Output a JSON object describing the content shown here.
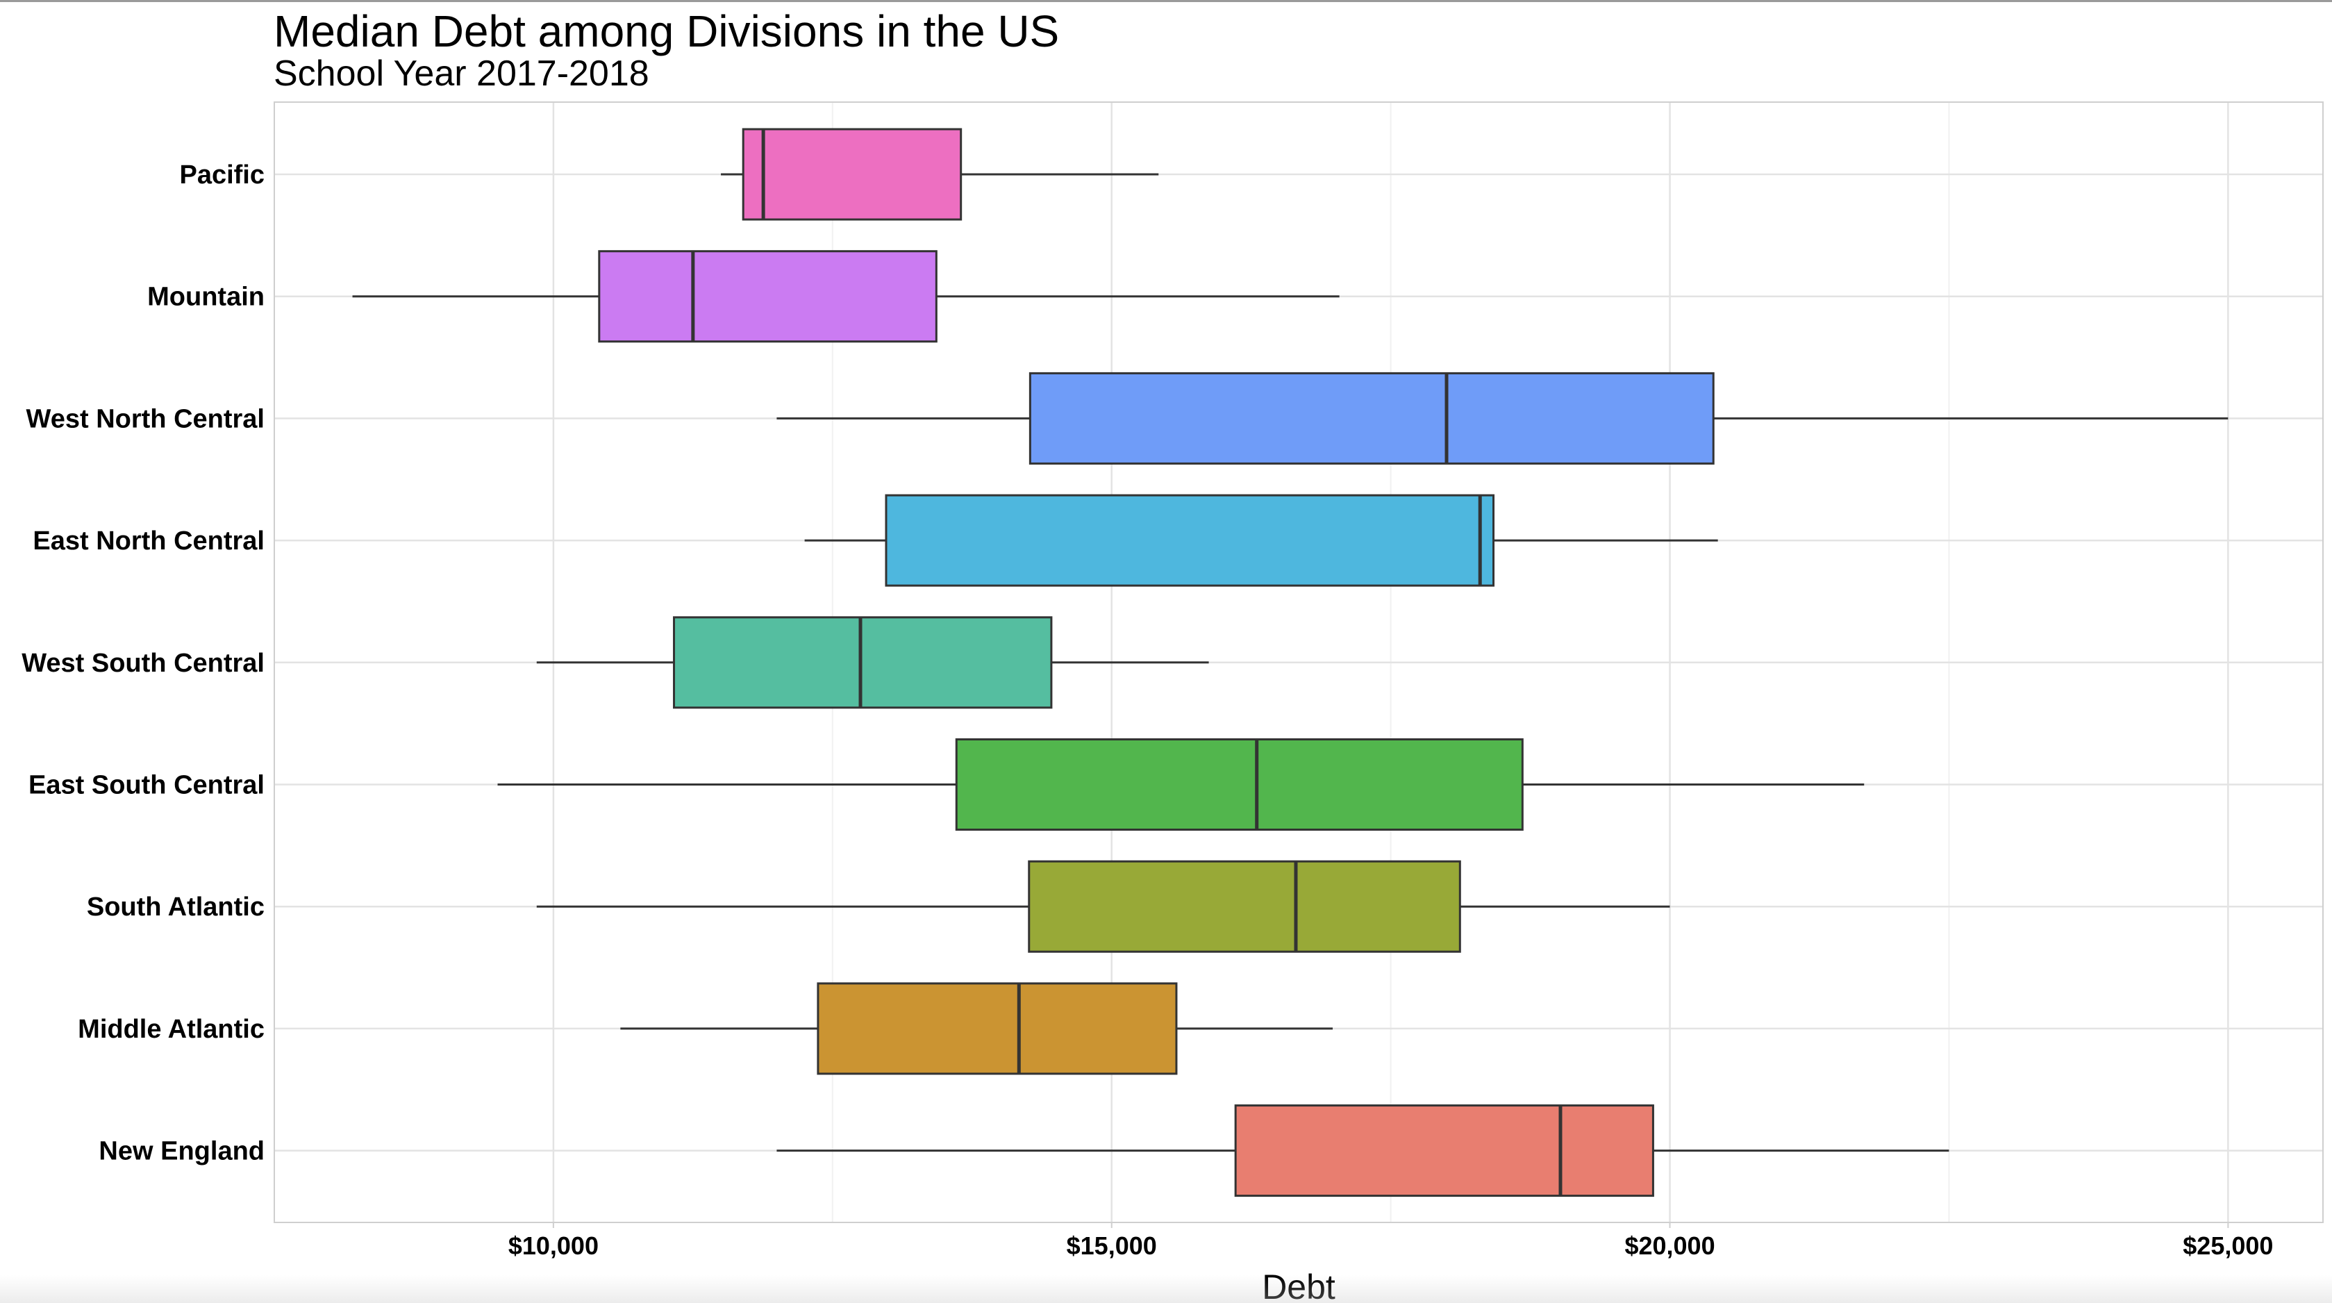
{
  "chart_data": {
    "type": "boxplot",
    "orientation": "horizontal",
    "title": "Median Debt among Divisions in the US",
    "subtitle": "School Year 2017-2018",
    "xlabel": "Debt",
    "ylabel": "",
    "xlim": [
      7500,
      25850
    ],
    "x_ticks": [
      10000,
      15000,
      20000,
      25000
    ],
    "x_tick_labels": [
      "$10,000",
      "$15,000",
      "$20,000",
      "$25,000"
    ],
    "grid": true,
    "legend": "none",
    "categories": [
      "Pacific",
      "Mountain",
      "West North Central",
      "East North Central",
      "West South Central",
      "East South Central",
      "South Atlantic",
      "Middle Atlantic",
      "New England"
    ],
    "series": [
      {
        "category": "Pacific",
        "whisker_low": 11500,
        "q1": 11700,
        "median": 11880,
        "q3": 13650,
        "whisker_high": 15420,
        "color": "#ED6FC1"
      },
      {
        "category": "Mountain",
        "whisker_low": 8200,
        "q1": 10410,
        "median": 11250,
        "q3": 13430,
        "whisker_high": 17040,
        "color": "#CB7BF2"
      },
      {
        "category": "West North Central",
        "whisker_low": 12000,
        "q1": 14270,
        "median": 18000,
        "q3": 20390,
        "whisker_high": 25000,
        "color": "#6F9CF8"
      },
      {
        "category": "East North Central",
        "whisker_low": 12250,
        "q1": 12980,
        "median": 18300,
        "q3": 18420,
        "whisker_high": 20430,
        "color": "#4EB7DE"
      },
      {
        "category": "West South Central",
        "whisker_low": 9850,
        "q1": 11080,
        "median": 12750,
        "q3": 14460,
        "whisker_high": 15870,
        "color": "#55BEA0"
      },
      {
        "category": "East South Central",
        "whisker_low": 9500,
        "q1": 13610,
        "median": 16300,
        "q3": 18680,
        "whisker_high": 21740,
        "color": "#52B64D"
      },
      {
        "category": "South Atlantic",
        "whisker_low": 9850,
        "q1": 14260,
        "median": 16650,
        "q3": 18120,
        "whisker_high": 20000,
        "color": "#98A937"
      },
      {
        "category": "Middle Atlantic",
        "whisker_low": 10600,
        "q1": 12370,
        "median": 14170,
        "q3": 15580,
        "whisker_high": 16980,
        "color": "#CB9432"
      },
      {
        "category": "New England",
        "whisker_low": 12000,
        "q1": 16110,
        "median": 19020,
        "q3": 19850,
        "whisker_high": 22500,
        "color": "#E87E70"
      }
    ]
  }
}
